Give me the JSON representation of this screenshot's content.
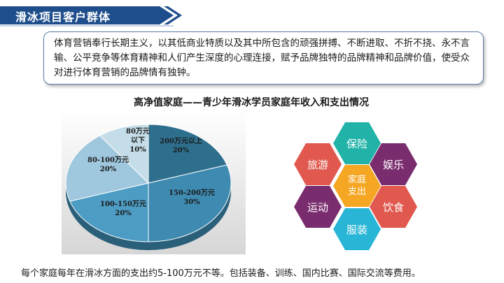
{
  "header": {
    "title": "滑冰项目客户群体"
  },
  "intro": {
    "text": "体育营销奉行长期主义，以其低商业特质以及其中所包含的顽强拼搏、不断进取、不折不挠、永不言输、公平竞争等体育精神和人们产生深度的心理连接，赋予品牌独特的品牌精神和品牌价值，使受众对进行体育营销的品牌情有独钟。"
  },
  "chart_title": "高净值家庭——青少年滑冰学员家庭年收入和支出情况",
  "chart_data": {
    "type": "pie",
    "title": "高净值家庭——青少年滑冰学员家庭年收入和支出情况",
    "slices": [
      {
        "label": "200万元以上",
        "value": 20,
        "value_label": "20%",
        "color": "#2e6f8e"
      },
      {
        "label": "150-200万元",
        "value": 30,
        "value_label": "30%",
        "color": "#3e8ab0"
      },
      {
        "label": "100-150万元",
        "value": 20,
        "value_label": "20%",
        "color": "#4d9cc4"
      },
      {
        "label": "80-100万元",
        "value": 20,
        "value_label": "20%",
        "color": "#9fc7de"
      },
      {
        "label": "80万元以下",
        "value": 10,
        "value_label": "10%",
        "color": "#c5dde9"
      }
    ]
  },
  "pie_labels": {
    "slice1_line1": "200万元以上",
    "slice1_line2": "20%",
    "slice2_line1": "150-200万元",
    "slice2_line2": "30%",
    "slice3_line1": "100-150万元",
    "slice3_line2": "20%",
    "slice4_line1": "80-100万元",
    "slice4_line2": "20%",
    "slice5_line1": "80万元",
    "slice5_line2": "以下",
    "slice5_line3": "10%"
  },
  "hexagons": {
    "center_line1": "家庭",
    "center_line2": "支出",
    "top": "保险",
    "upper_right": "娱乐",
    "lower_right": "饮食",
    "bottom": "服装",
    "lower_left": "运动",
    "upper_left": "旅游",
    "colors": {
      "center": "#f5a623",
      "top": "#21b3a8",
      "upper_right": "#7a2d6e",
      "lower_right": "#e0584e",
      "bottom": "#29b6d6",
      "lower_left": "#7a2d6e",
      "upper_left": "#e0584e"
    }
  },
  "footer": {
    "text": "每个家庭每年在滑冰方面的支出约5-100万元不等。包括装备、训练、国内比赛、国际交流等费用。"
  }
}
